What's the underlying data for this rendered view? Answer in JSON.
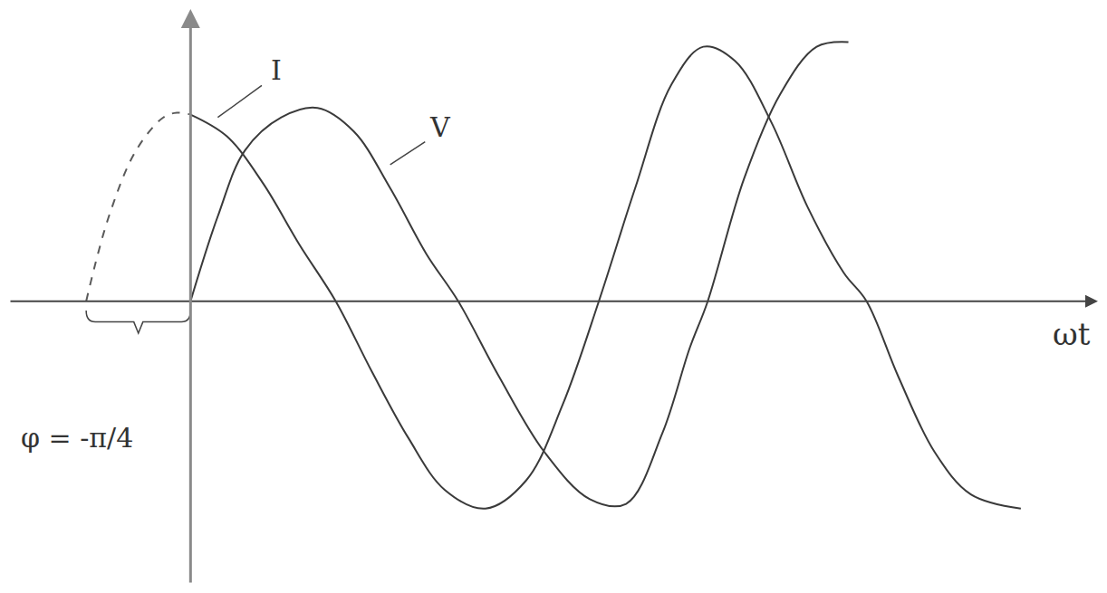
{
  "chart_data": {
    "type": "line",
    "x_label": "ωt",
    "tick_labels": false,
    "grid": false,
    "xlim": [
      -2,
      10
    ],
    "ylim": [
      -3,
      3.1
    ],
    "xticks": [],
    "yticks": [],
    "series": [
      {
        "name": "I",
        "color": "#3a3a3a",
        "line_style": "solid",
        "x": [
          0,
          0.4,
          0.8,
          1.2,
          1.6,
          2.0,
          2.4,
          2.8,
          3.25,
          3.7,
          4.1,
          4.5,
          4.9,
          5.3,
          5.65,
          6.0,
          6.4,
          6.8,
          7.2,
          7.45,
          7.8,
          8.2,
          8.6,
          9.15
        ],
        "values": [
          1.98,
          1.75,
          1.25,
          0.6,
          0,
          -0.75,
          -1.45,
          -2.0,
          -2.2,
          -1.9,
          -1.1,
          0,
          1.2,
          2.3,
          2.7,
          2.55,
          1.9,
          1.0,
          0.3,
          0,
          -0.8,
          -1.6,
          -2.05,
          -2.2
        ]
      },
      {
        "name": "I",
        "color": "#5a5a5a",
        "line_style": "dashed",
        "x": [
          -1.15,
          -0.9,
          -0.6,
          -0.3,
          -0.15,
          0
        ],
        "values": [
          0,
          0.9,
          1.6,
          1.95,
          2.0,
          1.98
        ]
      },
      {
        "name": "V",
        "color": "#3a3a3a",
        "line_style": "solid",
        "x": [
          0,
          0.3,
          0.6,
          1.0,
          1.4,
          1.8,
          2.2,
          2.6,
          2.95,
          3.4,
          3.9,
          4.4,
          4.8,
          5.2,
          5.5,
          5.7,
          6.1,
          6.5,
          6.9,
          7.25
        ],
        "values": [
          0,
          0.9,
          1.6,
          1.95,
          2.05,
          1.8,
          1.2,
          0.5,
          0,
          -0.8,
          -1.6,
          -2.1,
          -2.15,
          -1.4,
          -0.5,
          0,
          1.3,
          2.2,
          2.7,
          2.75
        ]
      }
    ],
    "annotations": [
      {
        "series": 0,
        "x": 0.95,
        "y": 2.45,
        "point_x": 0.3,
        "point_y": 1.95
      },
      {
        "series": 2,
        "x": 2.75,
        "y": 1.85,
        "point_x": 2.2,
        "point_y": 1.45
      },
      {
        "text": "φ = -π/4",
        "x": -1.25,
        "y": -1.45
      }
    ]
  }
}
